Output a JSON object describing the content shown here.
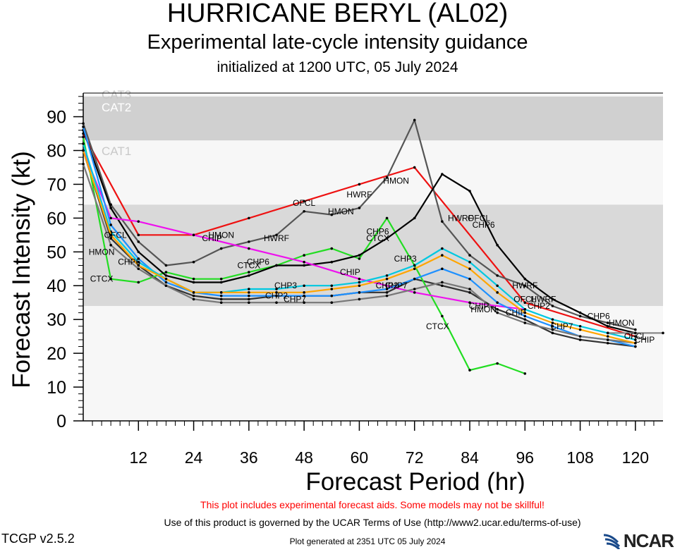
{
  "header": {
    "title": "HURRICANE BERYL (AL02)",
    "subtitle": "Experimental late-cycle intensity guidance",
    "initialized": "initialized at 1200 UTC, 05 July 2024"
  },
  "footer": {
    "warning": "This plot includes experimental forecast aids. Some models may not be skillful!",
    "terms": "Use of this product is governed by the UCAR Terms of Use (http://www2.ucar.edu/terms-of-use)",
    "generated": "Plot generated at 2351 UTC   05 July 2024",
    "version": "TCGP v2.5.2",
    "logo": "NCAR"
  },
  "chart_data": {
    "type": "line",
    "xlabel": "Forecast Period (hr)",
    "ylabel": "Forecast Intensity (kt)",
    "xlim": [
      0,
      126
    ],
    "ylim": [
      0,
      97
    ],
    "xticks": [
      12,
      24,
      36,
      48,
      60,
      72,
      84,
      96,
      108,
      120
    ],
    "yticks": [
      0,
      10,
      20,
      30,
      40,
      50,
      60,
      70,
      80,
      90
    ],
    "bands": [
      {
        "label": "",
        "from": 34,
        "to": 64,
        "color": "#d9d9d9"
      },
      {
        "label": "CAT1",
        "from": 64,
        "to": 83,
        "color": "#f7f7f7"
      },
      {
        "label": "CAT2",
        "from": 83,
        "to": 96,
        "color": "#d0d0d0"
      },
      {
        "label": "CAT3",
        "from": 96,
        "to": 97,
        "color": "#f7f7f7"
      }
    ],
    "series": [
      {
        "name": "OFCL",
        "color": "#ee1111",
        "x": [
          0,
          12,
          24,
          36,
          48,
          60,
          72,
          96,
          120
        ],
        "y": [
          85,
          55,
          55,
          60,
          65,
          70,
          75,
          35,
          25
        ],
        "labels": [
          [
            7,
            55
          ],
          [
            48,
            64.5
          ],
          [
            86,
            60
          ],
          [
            96,
            36
          ],
          [
            120,
            25
          ]
        ]
      },
      {
        "name": "HWRF",
        "color": "#555555",
        "x": [
          0,
          6,
          12,
          18,
          24,
          30,
          36,
          42,
          48,
          54,
          60,
          66,
          72,
          78,
          84,
          90,
          96,
          102,
          108,
          114,
          120
        ],
        "y": [
          88,
          64,
          53,
          46,
          47,
          51,
          53,
          55,
          62,
          61,
          63,
          72,
          89,
          59,
          49,
          43,
          40,
          34,
          31,
          29,
          27
        ],
        "labels": [
          [
            42,
            54
          ],
          [
            60,
            67
          ],
          [
            82,
            60
          ],
          [
            96,
            40
          ],
          [
            100,
            36
          ]
        ]
      },
      {
        "name": "HMON",
        "color": "#333333",
        "x": [
          0,
          6,
          12,
          18,
          24,
          30,
          36,
          42,
          48,
          54,
          60,
          66,
          72,
          78,
          84,
          90,
          96,
          102,
          108,
          114,
          120
        ],
        "y": [
          80,
          54,
          46,
          40,
          37,
          36,
          36,
          37,
          37,
          37,
          38,
          38,
          42,
          40,
          38,
          33,
          30,
          26,
          24,
          23,
          22
        ],
        "labels": [
          [
            4,
            50
          ],
          [
            30,
            55
          ],
          [
            56,
            62
          ],
          [
            68,
            71
          ],
          [
            87,
            33
          ],
          [
            117,
            29
          ]
        ]
      },
      {
        "name": "CTCX",
        "color": "#22dd22",
        "x": [
          0,
          6,
          12,
          18,
          24,
          30,
          36,
          42,
          48,
          54,
          60,
          66,
          72,
          78,
          84,
          90,
          96
        ],
        "y": [
          84,
          42,
          41,
          44,
          42,
          42,
          44,
          46,
          49,
          51,
          48,
          60,
          46,
          31,
          15,
          17,
          14
        ],
        "labels": [
          [
            4,
            42
          ],
          [
            36,
            46
          ],
          [
            64,
            54
          ],
          [
            77,
            28
          ]
        ]
      },
      {
        "name": "CHP6",
        "color": "#000000",
        "x": [
          0,
          6,
          12,
          18,
          24,
          30,
          36,
          42,
          48,
          54,
          60,
          66,
          72,
          78,
          84,
          90,
          96,
          102,
          108,
          114,
          120
        ],
        "y": [
          86,
          63,
          50,
          43,
          41,
          41,
          43,
          46,
          46,
          47,
          49,
          54,
          60,
          73,
          68,
          52,
          42,
          36,
          32,
          28,
          26
        ],
        "labels": [
          [
            10,
            47
          ],
          [
            38,
            47
          ],
          [
            64,
            56
          ],
          [
            87,
            58
          ],
          [
            112,
            31
          ]
        ]
      },
      {
        "name": "CHIP",
        "color": "#ee11ee",
        "x": [
          0,
          6,
          12,
          24,
          36,
          48,
          60,
          72,
          84,
          96
        ],
        "y": [
          80,
          60,
          59,
          55,
          51,
          47,
          42,
          38,
          35,
          33
        ],
        "labels": [
          [
            28,
            54
          ],
          [
            58,
            44
          ],
          [
            86,
            34
          ],
          [
            94,
            32
          ],
          [
            122,
            24
          ]
        ]
      },
      {
        "name": "CHP2",
        "color": "#1e90ff",
        "x": [
          0,
          6,
          12,
          18,
          24,
          30,
          36,
          42,
          48,
          54,
          60,
          66,
          72,
          78,
          84,
          90,
          96,
          102,
          108,
          114,
          120
        ],
        "y": [
          87,
          58,
          48,
          41,
          38,
          37,
          37,
          37,
          37,
          37,
          38,
          39,
          42,
          45,
          42,
          35,
          31,
          28,
          25,
          24,
          22
        ],
        "labels": [
          [
            42,
            37
          ],
          [
            66,
            40
          ],
          [
            99,
            34
          ]
        ]
      },
      {
        "name": "CHP3",
        "color": "#00c8e0",
        "x": [
          0,
          6,
          12,
          18,
          24,
          30,
          36,
          42,
          48,
          54,
          60,
          66,
          72,
          78,
          84,
          90,
          96,
          102,
          108,
          114,
          120
        ],
        "y": [
          82,
          56,
          47,
          42,
          38,
          38,
          39,
          39,
          40,
          40,
          41,
          43,
          46,
          51,
          47,
          40,
          33,
          30,
          28,
          26,
          24
        ],
        "labels": [
          [
            44,
            40
          ],
          [
            70,
            48
          ]
        ]
      },
      {
        "name": "CHP7",
        "color": "#777777",
        "x": [
          0,
          6,
          12,
          18,
          24,
          30,
          36,
          42,
          48,
          54,
          60,
          66,
          72,
          78,
          84,
          90,
          96,
          102,
          108,
          114,
          120
        ],
        "y": [
          76,
          52,
          45,
          40,
          36,
          35,
          35,
          35,
          35,
          35,
          36,
          37,
          39,
          41,
          39,
          32,
          29,
          27,
          25,
          24,
          23
        ],
        "labels": [
          [
            46,
            36
          ],
          [
            68,
            40
          ],
          [
            104,
            28
          ]
        ]
      },
      {
        "name": "",
        "color": "#ffa500",
        "x": [
          0,
          6,
          12,
          18,
          24,
          30,
          36,
          42,
          48,
          54,
          60,
          66,
          72,
          78,
          84,
          90,
          96,
          102,
          108,
          114,
          120
        ],
        "y": [
          80,
          55,
          46,
          42,
          38,
          38,
          38,
          38,
          38,
          39,
          40,
          42,
          45,
          49,
          45,
          38,
          32,
          29,
          27,
          25,
          23
        ],
        "labels": []
      },
      {
        "name": "",
        "color": "#888888",
        "x": [
          114,
          120,
          126
        ],
        "y": [
          26,
          26,
          26
        ],
        "labels": []
      }
    ]
  }
}
